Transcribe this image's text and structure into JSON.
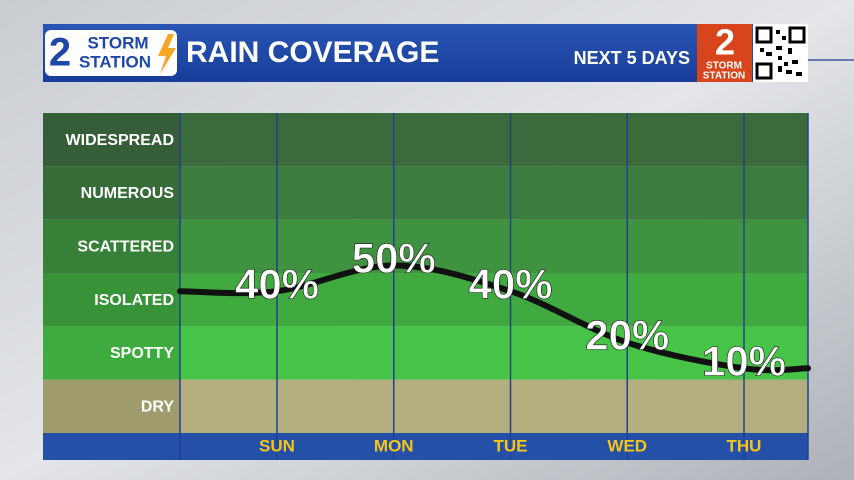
{
  "header": {
    "title": "RAIN COVERAGE",
    "subtitle": "NEXT 5 DAYS",
    "logo": {
      "number": "2",
      "line1": "STORM",
      "line2": "STATION"
    }
  },
  "chart_data": {
    "type": "line",
    "bands": [
      "WIDESPREAD",
      "NUMEROUS",
      "SCATTERED",
      "ISOLATED",
      "SPOTTY",
      "DRY"
    ],
    "categories": [
      "SUN",
      "MON",
      "TUE",
      "WED",
      "THU"
    ],
    "values": [
      40,
      50,
      40,
      20,
      10
    ],
    "value_labels": [
      "40%",
      "50%",
      "40%",
      "20%",
      "10%"
    ],
    "color": "#111111",
    "ylim": [
      0,
      100
    ]
  }
}
